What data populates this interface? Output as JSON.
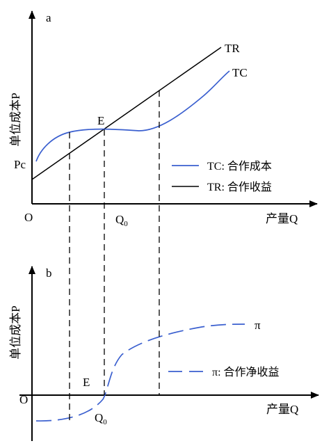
{
  "colors": {
    "tc": "#3a5fcf",
    "pi": "#3a5fcf",
    "tr": "#000000",
    "axis": "#000000"
  },
  "panel_a": {
    "letter": "a",
    "ylabel": "单位成本P",
    "xlabel": "产量Q",
    "origin": "O",
    "pc_label": "Pc",
    "e_label": "E",
    "q0_main": "Q",
    "q0_sub": "0",
    "tr_label": "TR",
    "tc_label": "TC",
    "legend": [
      {
        "series": "tc",
        "text": "TC: 合作成本"
      },
      {
        "series": "tr",
        "text": "TR: 合作收益"
      }
    ]
  },
  "panel_b": {
    "letter": "b",
    "ylabel": "单位成本P",
    "xlabel": "产量Q",
    "origin": "O",
    "e_label": "E",
    "q0_main": "Q",
    "q0_sub": "0",
    "pi_label": "π",
    "legend": [
      {
        "series": "pi",
        "text": "π: 合作净收益"
      }
    ]
  }
}
